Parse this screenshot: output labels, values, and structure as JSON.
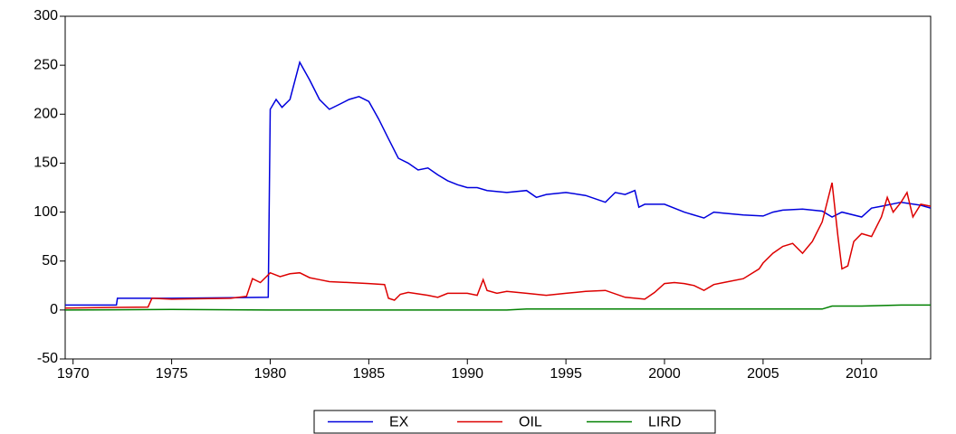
{
  "chart_data": {
    "type": "line",
    "xlim": [
      1969.6,
      2013.5
    ],
    "xticks": [
      1970,
      1975,
      1980,
      1985,
      1990,
      1995,
      2000,
      2005,
      2010
    ],
    "ylim": [
      -50,
      300
    ],
    "yticks": [
      -50,
      0,
      50,
      100,
      150,
      200,
      250,
      300
    ],
    "legend": "bottom",
    "series": [
      {
        "name": "EX",
        "color": "#0000dd",
        "x": [
          1969.6,
          1972.2,
          1972.25,
          1975,
          1979.9,
          1980.0,
          1980.3,
          1980.6,
          1981,
          1981.5,
          1982,
          1982.5,
          1983,
          1983.5,
          1984,
          1984.5,
          1985,
          1985.5,
          1986,
          1986.5,
          1987,
          1987.5,
          1988,
          1988.5,
          1989,
          1989.5,
          1990,
          1990.5,
          1991,
          1992,
          1993,
          1993.5,
          1994,
          1995,
          1996,
          1997,
          1997.5,
          1998,
          1998.5,
          1998.7,
          1999,
          2000,
          2001,
          2002,
          2002.5,
          2003,
          2004,
          2005,
          2005.5,
          2006,
          2007,
          2008,
          2008.5,
          2009,
          2010,
          2010.5,
          2011,
          2012,
          2013,
          2013.5
        ],
        "values": [
          5,
          5,
          12,
          12,
          13,
          205,
          215,
          207,
          215,
          253,
          235,
          215,
          205,
          210,
          215,
          218,
          213,
          195,
          175,
          155,
          150,
          143,
          145,
          138,
          132,
          128,
          125,
          125,
          122,
          120,
          122,
          115,
          118,
          120,
          117,
          110,
          120,
          118,
          122,
          105,
          108,
          108,
          100,
          94,
          100,
          99,
          97,
          96,
          100,
          102,
          103,
          101,
          95,
          100,
          95,
          104,
          106,
          110,
          107,
          104
        ]
      },
      {
        "name": "OIL",
        "color": "#dd0000",
        "x": [
          1969.6,
          1973.8,
          1974,
          1975,
          1978,
          1978.8,
          1979.1,
          1979.5,
          1980,
          1980.5,
          1981,
          1981.5,
          1982,
          1982.5,
          1983,
          1984,
          1985,
          1985.8,
          1986,
          1986.3,
          1986.6,
          1987,
          1988,
          1988.5,
          1989,
          1990,
          1990.5,
          1990.8,
          1991,
          1991.5,
          1992,
          1993,
          1994,
          1995,
          1996,
          1997,
          1998,
          1999,
          1999.5,
          2000,
          2000.5,
          2001,
          2001.5,
          2002,
          2002.5,
          2003,
          2004,
          2004.8,
          2005,
          2005.5,
          2006,
          2006.5,
          2007,
          2007.5,
          2008,
          2008.5,
          2008.8,
          2009,
          2009.3,
          2009.6,
          2010,
          2010.5,
          2011,
          2011.3,
          2011.6,
          2012,
          2012.3,
          2012.6,
          2013,
          2013.5
        ],
        "values": [
          2,
          3,
          12,
          11,
          12,
          14,
          32,
          28,
          38,
          34,
          37,
          38,
          33,
          31,
          29,
          28,
          27,
          26,
          12,
          10,
          16,
          18,
          15,
          13,
          17,
          17,
          15,
          31,
          20,
          17,
          19,
          17,
          15,
          17,
          19,
          20,
          13,
          11,
          18,
          27,
          28,
          27,
          25,
          20,
          26,
          28,
          32,
          42,
          48,
          58,
          65,
          68,
          58,
          70,
          90,
          130,
          75,
          42,
          45,
          70,
          78,
          75,
          95,
          115,
          100,
          110,
          120,
          95,
          108,
          106
        ]
      },
      {
        "name": "LIRD",
        "color": "#008000",
        "x": [
          1969.6,
          1975,
          1980,
          1985,
          1992,
          1993,
          2000,
          2008,
          2008.5,
          2010,
          2012,
          2013.5
        ],
        "values": [
          0,
          0.5,
          0,
          0,
          0,
          1,
          1,
          1,
          4,
          4,
          5,
          5
        ]
      }
    ]
  }
}
